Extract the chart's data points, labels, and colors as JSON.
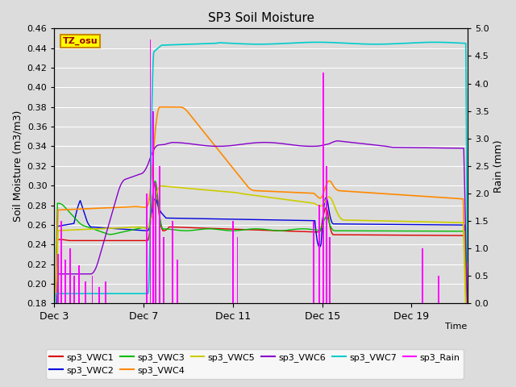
{
  "title": "SP3 Soil Moisture",
  "ylabel_left": "Soil Moisture (m3/m3)",
  "ylabel_right": "Rain (mm)",
  "xlabel": "Time",
  "ylim_left": [
    0.18,
    0.46
  ],
  "ylim_right": [
    0.0,
    5.0
  ],
  "yticks_left": [
    0.18,
    0.2,
    0.22,
    0.24,
    0.26,
    0.28,
    0.3,
    0.32,
    0.34,
    0.36,
    0.38,
    0.4,
    0.42,
    0.44,
    0.46
  ],
  "yticks_right": [
    0.0,
    0.5,
    1.0,
    1.5,
    2.0,
    2.5,
    3.0,
    3.5,
    4.0,
    4.5,
    5.0
  ],
  "xtick_labels": [
    "Dec 3",
    "Dec 7",
    "Dec 11",
    "Dec 15",
    "Dec 19"
  ],
  "xtick_positions": [
    0,
    4,
    8,
    12,
    16
  ],
  "xlim": [
    0,
    18.5
  ],
  "total_days": 18.5,
  "event1": 4.3,
  "event2": 12.0,
  "bg_color": "#dcdcdc",
  "colors": {
    "vwc1": "#dd0000",
    "vwc2": "#0000dd",
    "vwc3": "#00bb00",
    "vwc4": "#ff8800",
    "vwc5": "#cccc00",
    "vwc6": "#8800cc",
    "vwc7": "#00cccc",
    "rain": "#ff00ff"
  },
  "watermark": "TZ_osu",
  "watermark_bg": "#ffff00",
  "watermark_border": "#cc8800",
  "legend_row1": [
    "sp3_VWC1",
    "sp3_VWC2",
    "sp3_VWC3",
    "sp3_VWC4",
    "sp3_VWC5",
    "sp3_VWC6"
  ],
  "legend_row2": [
    "sp3_VWC7",
    "sp3_Rain"
  ]
}
